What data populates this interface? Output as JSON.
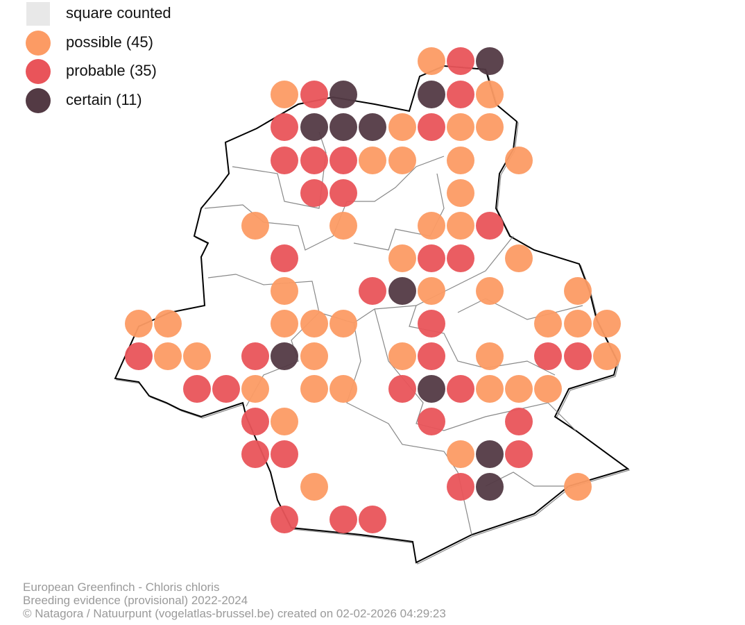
{
  "legend": {
    "items": [
      {
        "label": "square counted"
      },
      {
        "label": "possible (45)"
      },
      {
        "label": "probable (35)"
      },
      {
        "label": "certain (11)"
      }
    ]
  },
  "footer": {
    "lines": [
      "European Greenfinch - Chloris chloris",
      "Breeding evidence (provisional) 2022-2024",
      "© Natagora / Natuurpunt (vogelatlas-brussel.be) created on 02-02-2026 04:29:23"
    ]
  }
}
